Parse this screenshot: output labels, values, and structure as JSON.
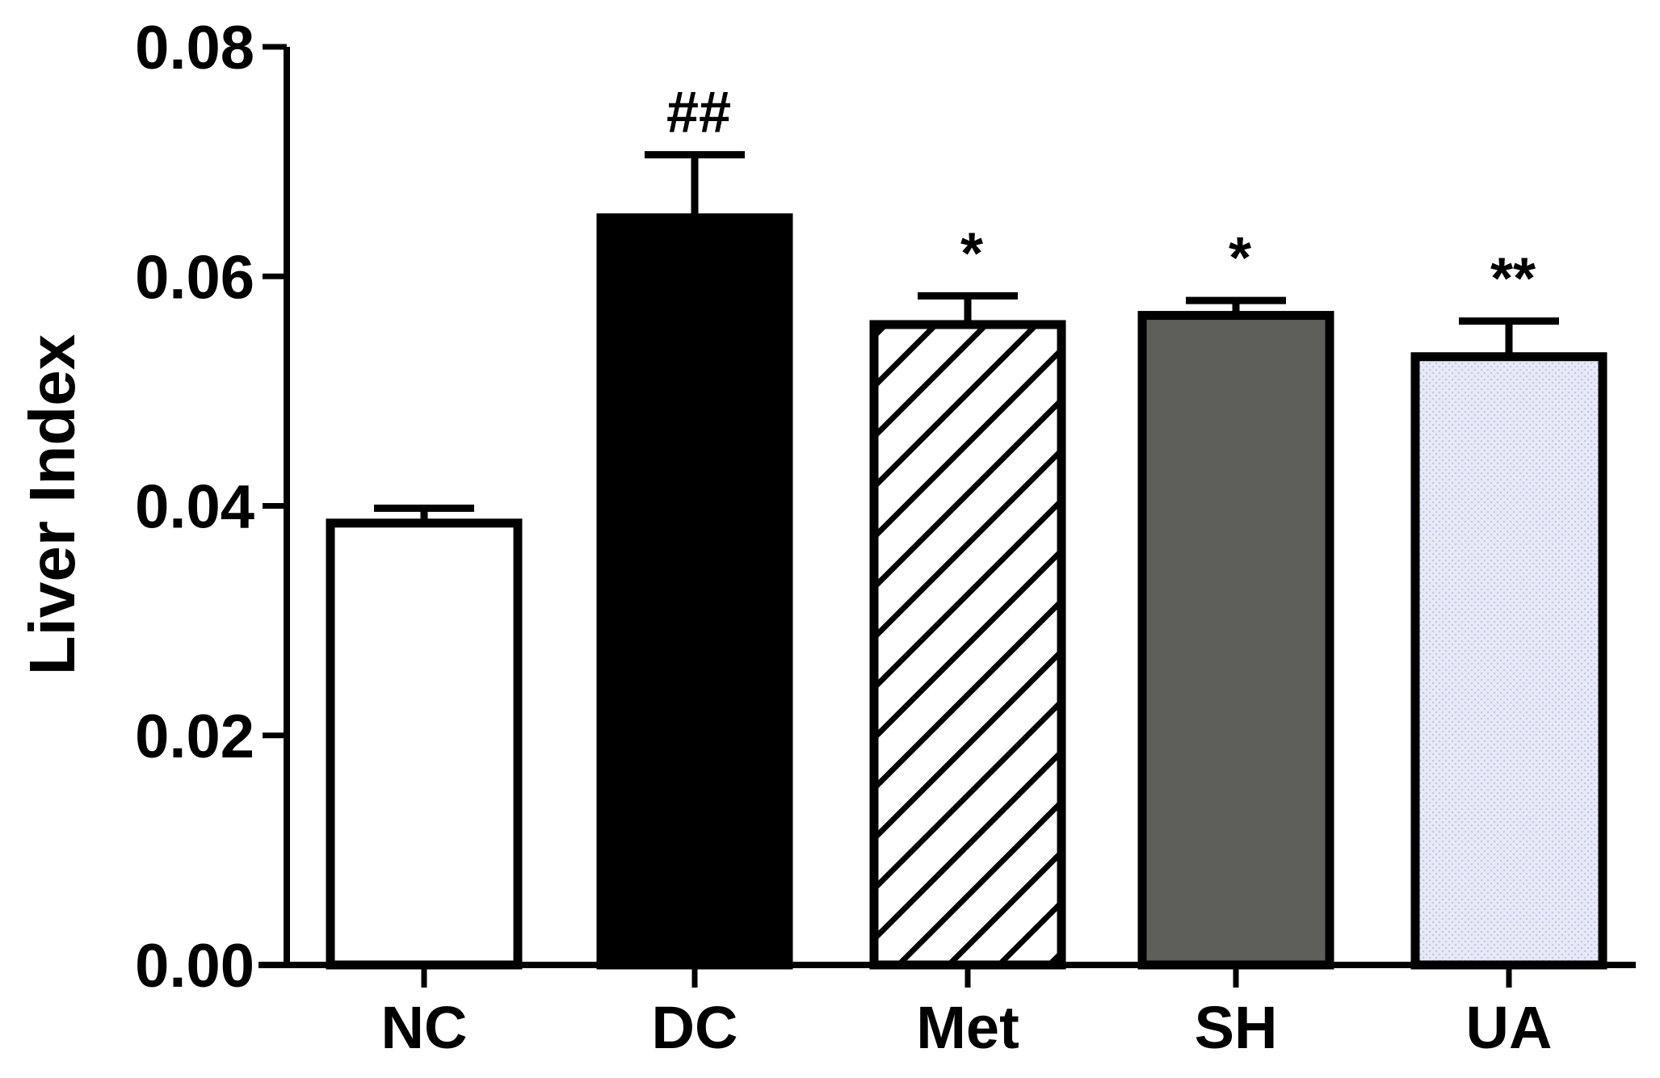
{
  "chart_data": {
    "type": "bar",
    "title": "",
    "xlabel": "",
    "ylabel": "Liver Index",
    "ylim": [
      0,
      0.08
    ],
    "yticks": [
      "0.00",
      "0.02",
      "0.04",
      "0.06",
      "0.08"
    ],
    "grid": false,
    "categories": [
      "NC",
      "DC",
      "Met",
      "SH",
      "UA"
    ],
    "values": [
      0.0385,
      0.0651,
      0.0558,
      0.0566,
      0.053
    ],
    "errors": [
      0.0013,
      0.0055,
      0.0025,
      0.0013,
      0.0031
    ],
    "annotations": [
      "",
      "##",
      "*",
      "*",
      "**"
    ],
    "fills": [
      {
        "style": "solid",
        "color": "#ffffff"
      },
      {
        "style": "solid",
        "color": "#000000"
      },
      {
        "style": "hatch",
        "color": "#ffffff"
      },
      {
        "style": "solid",
        "color": "#5e5f5b"
      },
      {
        "style": "dots",
        "color": "#e4e6f6"
      }
    ]
  }
}
